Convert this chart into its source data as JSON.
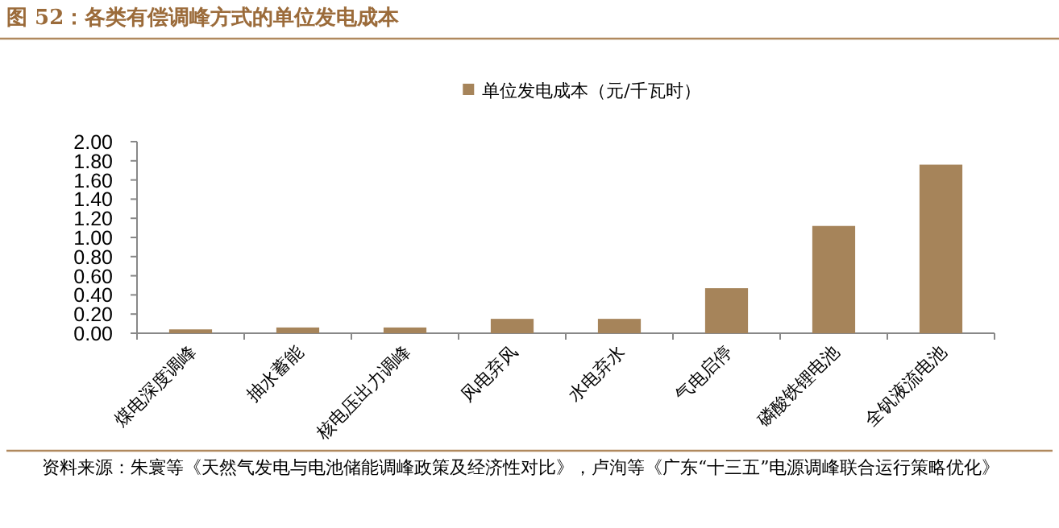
{
  "chart_data": {
    "type": "bar",
    "title": "图 52：各类有偿调峰方式的单位发电成本",
    "categories": [
      "煤电深度调峰",
      "抽水蓄能",
      "核电压出力调峰",
      "风电弃风",
      "水电弃水",
      "气电启停",
      "磷酸铁锂电池",
      "全钒液流电池"
    ],
    "series": [
      {
        "name": "单位发电成本（元/千瓦时）",
        "color": "#a6845a",
        "values": [
          0.04,
          0.06,
          0.06,
          0.15,
          0.15,
          0.47,
          1.12,
          1.76
        ]
      }
    ],
    "ylim": [
      0,
      2
    ],
    "yticks": [
      {
        "value": 0,
        "label": "0.00"
      },
      {
        "value": 0.2,
        "label": "0.20"
      },
      {
        "value": 0.4,
        "label": "0.40"
      },
      {
        "value": 0.6,
        "label": "0.60"
      },
      {
        "value": 0.8,
        "label": "0.80"
      },
      {
        "value": 1,
        "label": "1.00"
      },
      {
        "value": 1.2,
        "label": "1.20"
      },
      {
        "value": 1.4,
        "label": "1.40"
      },
      {
        "value": 1.6,
        "label": "1.60"
      },
      {
        "value": 1.8,
        "label": "1.80"
      },
      {
        "value": 2,
        "label": "2.00"
      }
    ],
    "legend": "top",
    "annotations": [
      "资料来源：朱寰等《天然气发电与电池储能调峰政策及经济性对比》，卢洵等《广东“十三五”电源调峰联合运行策略优化》"
    ]
  }
}
